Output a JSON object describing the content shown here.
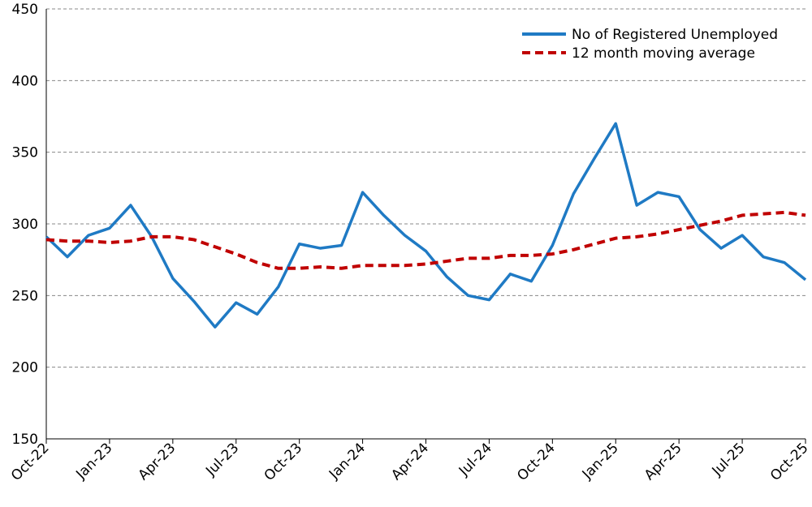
{
  "chart_data": {
    "type": "line",
    "title": "",
    "xlabel": "",
    "ylabel": "",
    "ylim": [
      150,
      450
    ],
    "yticks": [
      150,
      200,
      250,
      300,
      350,
      400,
      450
    ],
    "xtick_labels": [
      "Oct-22",
      "Jan-23",
      "Apr-23",
      "Jul-23",
      "Oct-23",
      "Jan-24",
      "Apr-24",
      "Jul-24",
      "Oct-24",
      "Jan-25",
      "Apr-25",
      "Jul-25",
      "Oct-25"
    ],
    "grid": true,
    "legend_position": "top-right",
    "series": [
      {
        "name": "No of Registered Unemployed",
        "color": "#1f7ac4",
        "style": "solid",
        "values": [
          291,
          277,
          292,
          297,
          313,
          291,
          262,
          246,
          228,
          245,
          237,
          256,
          286,
          283,
          285,
          322,
          306,
          292,
          281,
          263,
          250,
          247,
          265,
          260,
          285,
          321,
          346,
          370,
          313,
          322,
          319,
          296,
          283,
          292,
          277,
          273,
          261
        ]
      },
      {
        "name": "12 month moving average",
        "color": "#c00000",
        "style": "dashed",
        "values": [
          289,
          288,
          288,
          287,
          288,
          291,
          291,
          289,
          284,
          279,
          273,
          269,
          269,
          270,
          269,
          271,
          271,
          271,
          272,
          274,
          276,
          276,
          278,
          278,
          279,
          282,
          286,
          290,
          291,
          293,
          296,
          299,
          302,
          306,
          307,
          308,
          306
        ]
      }
    ]
  }
}
